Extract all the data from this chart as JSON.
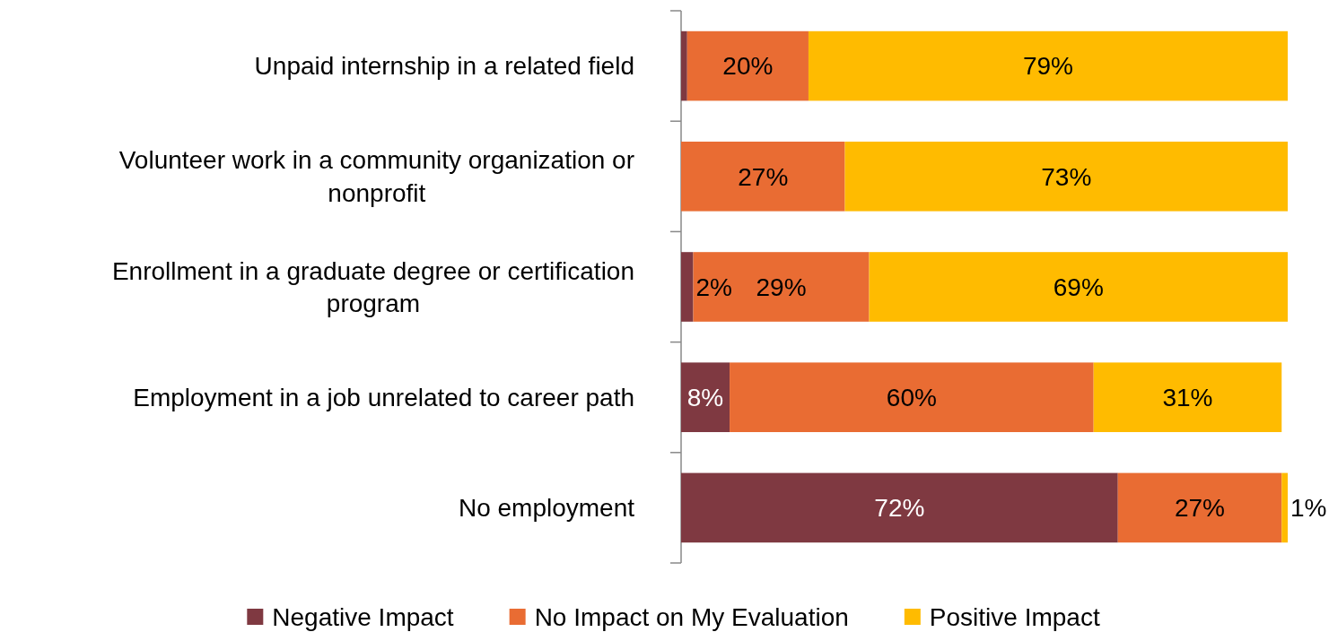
{
  "chart_data": {
    "type": "bar",
    "orientation": "horizontal",
    "stacked": true,
    "categories": [
      "Unpaid internship in a related field",
      "Volunteer work in a community organization or nonprofit",
      "Enrollment in a graduate degree or certification program",
      "Employment in a job unrelated to career path",
      "No employment"
    ],
    "series": [
      {
        "name": "Negative Impact",
        "color": "#7f3941",
        "values": [
          1,
          0,
          2,
          8,
          72
        ],
        "value_labels": [
          null,
          null,
          "2%",
          "8%",
          "72%"
        ]
      },
      {
        "name": "No Impact on My Evaluation",
        "color": "#e96c33",
        "values": [
          20,
          27,
          29,
          60,
          27
        ],
        "value_labels": [
          "20%",
          "27%",
          "29%",
          "60%",
          "27%"
        ]
      },
      {
        "name": "Positive Impact",
        "color": "#ffbb00",
        "values": [
          79,
          73,
          69,
          31,
          1
        ],
        "value_labels": [
          "79%",
          "73%",
          "69%",
          "31%",
          "1%"
        ]
      }
    ],
    "xlim": [
      0,
      100
    ],
    "tick_labels": "y",
    "legend": "bottom"
  }
}
